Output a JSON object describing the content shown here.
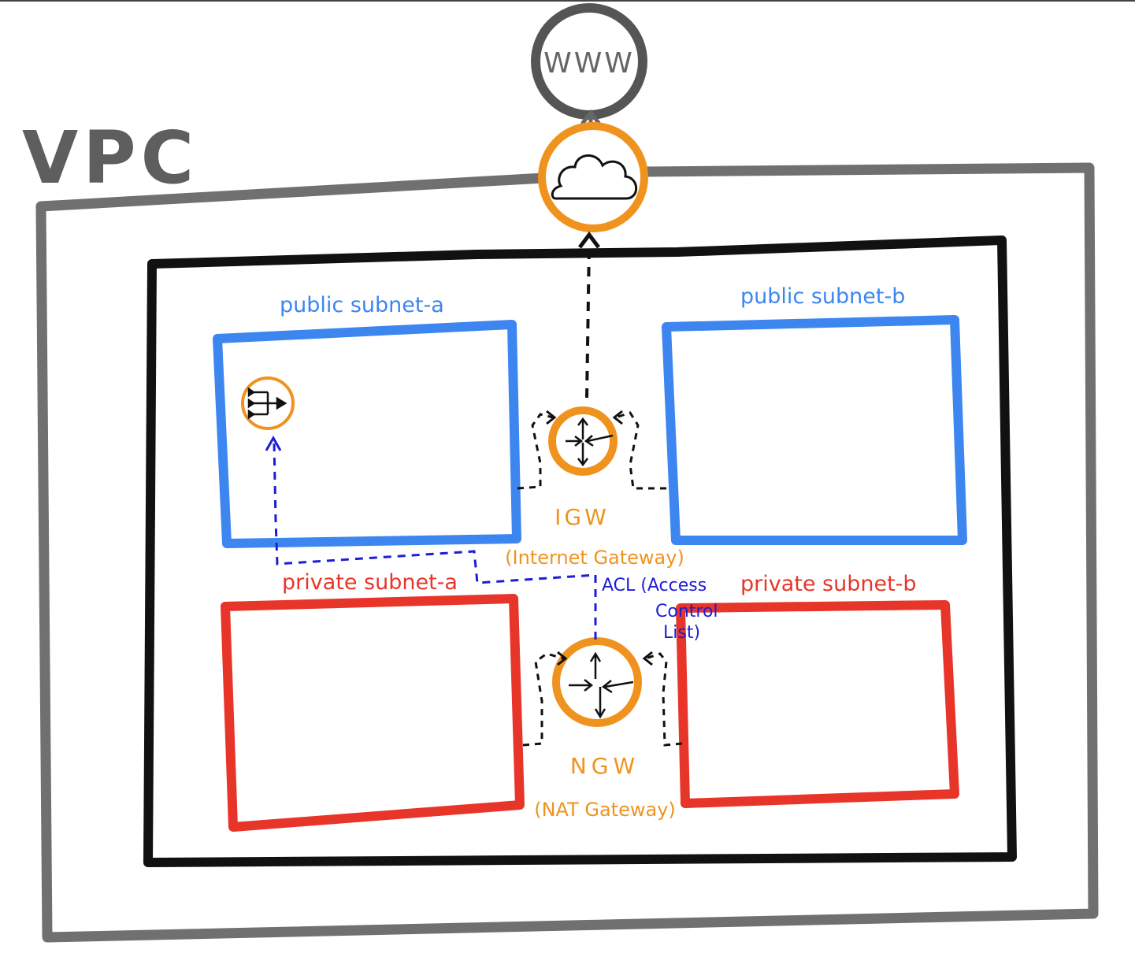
{
  "labels": {
    "vpc": "VPC",
    "internet": "WWW",
    "public_subnet_a": "public subnet-a",
    "public_subnet_b": "public subnet-b",
    "private_subnet_a": "private subnet-a",
    "private_subnet_b": "private subnet-b",
    "igw_short": "IGW",
    "igw_long": "(Internet Gateway)",
    "ngw_short": "NGW",
    "ngw_long": "(NAT Gateway)",
    "acl_line1": "ACL (Access",
    "acl_line2": "Control",
    "acl_line3": "List)"
  },
  "colors": {
    "vpc_border": "#707070",
    "inner_border": "#111111",
    "public": "#3d86f0",
    "private": "#e8352a",
    "gateway": "#f0931e",
    "acl": "#1d1dd6",
    "internet": "#555555"
  },
  "icons": {
    "internet": "globe-circle",
    "cloud": "cloud-icon",
    "router": "router-arrows-icon",
    "load_balancer": "load-balancer-icon"
  }
}
